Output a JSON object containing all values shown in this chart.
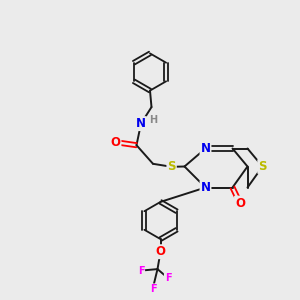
{
  "bg_color": "#ebebeb",
  "bond_color": "#1a1a1a",
  "atom_colors": {
    "N": "#0000ee",
    "S": "#bbbb00",
    "O": "#ff0000",
    "F": "#ff00ff",
    "H": "#888888",
    "C": "#1a1a1a"
  },
  "font_size_atom": 8.5,
  "font_size_small": 7.0
}
